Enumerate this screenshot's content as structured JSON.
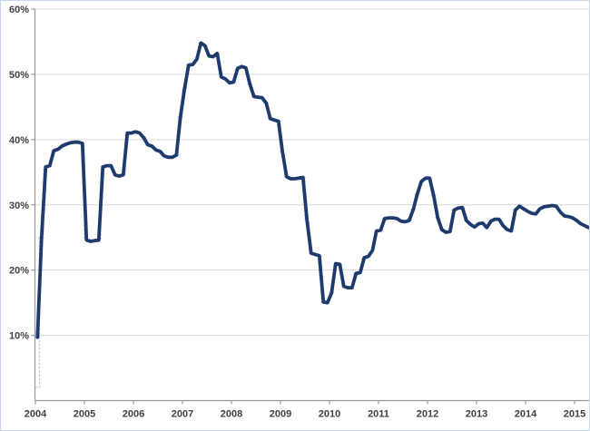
{
  "chart": {
    "colors": {
      "main_line": "#1f3b6d",
      "step_line": "#b9cbe5",
      "gridline": "#d9d9d9",
      "axis": "#9a9a9a",
      "label": "#404040",
      "frame_border": "#c9d7e8",
      "background": "#ffffff"
    },
    "y_axis": {
      "ticks": [
        10,
        20,
        30,
        40,
        50,
        60
      ],
      "tick_labels": [
        "10%",
        "20%",
        "30%",
        "40%",
        "50%",
        "60%"
      ],
      "min": 0,
      "max": 60
    },
    "x_axis": {
      "tick_labels": [
        "2004",
        "2005",
        "2006",
        "2007",
        "2008",
        "2009",
        "2010",
        "2011",
        "2012",
        "2013",
        "2014",
        "2015"
      ]
    }
  },
  "chart_data": {
    "type": "line",
    "frequency": "monthly",
    "start_month": "2004-01",
    "end_month": "2015-04",
    "unit": "%",
    "ylim": [
      0,
      60
    ],
    "grid": "horizontal",
    "legend": "none",
    "x_tick_labels": [
      "2004",
      "2005",
      "2006",
      "2007",
      "2008",
      "2009",
      "2010",
      "2011",
      "2012",
      "2013",
      "2014",
      "2015"
    ],
    "series": [
      {
        "name": "series-1",
        "style": "solid-thick",
        "color": "#1f3b6d",
        "values": [
          9.7,
          25.0,
          35.8,
          36.0,
          38.3,
          38.5,
          39.0,
          39.3,
          39.5,
          39.6,
          39.6,
          39.4,
          24.6,
          24.4,
          24.5,
          24.6,
          35.8,
          36.0,
          36.0,
          34.6,
          34.4,
          34.6,
          41.0,
          41.0,
          41.2,
          41.0,
          40.3,
          39.2,
          39.0,
          38.4,
          38.2,
          37.5,
          37.3,
          37.3,
          37.6,
          43.5,
          47.8,
          51.4,
          51.5,
          52.3,
          54.8,
          54.4,
          52.8,
          52.7,
          53.2,
          49.6,
          49.3,
          48.7,
          48.8,
          50.9,
          51.2,
          51.0,
          48.5,
          46.6,
          46.5,
          46.4,
          45.6,
          43.2,
          43.0,
          42.8,
          38.0,
          34.3,
          34.0,
          34.0,
          34.1,
          34.2,
          27.5,
          22.6,
          22.4,
          22.2,
          15.1,
          15.0,
          16.5,
          21.0,
          20.9,
          17.5,
          17.3,
          17.3,
          19.5,
          19.6,
          21.9,
          22.1,
          23.0,
          26.0,
          26.1,
          27.9,
          28.0,
          28.0,
          27.9,
          27.5,
          27.4,
          27.6,
          29.3,
          31.7,
          33.6,
          34.1,
          34.1,
          31.4,
          28.0,
          26.2,
          25.8,
          25.9,
          29.2,
          29.5,
          29.6,
          27.6,
          27.0,
          26.6,
          27.1,
          27.2,
          26.5,
          27.5,
          27.8,
          27.8,
          26.8,
          26.2,
          26.0,
          29.2,
          29.8,
          29.4,
          29.0,
          28.7,
          28.6,
          29.4,
          29.7,
          29.8,
          29.9,
          29.8,
          28.9,
          28.3,
          28.2,
          28.0,
          27.6,
          27.1,
          26.8,
          26.5
        ]
      },
      {
        "name": "series-1-monthly-step",
        "style": "dotted-step",
        "color": "#b9cbe5",
        "values_same_as": "series-1",
        "overrides": {
          "0": 2.0
        }
      }
    ]
  }
}
